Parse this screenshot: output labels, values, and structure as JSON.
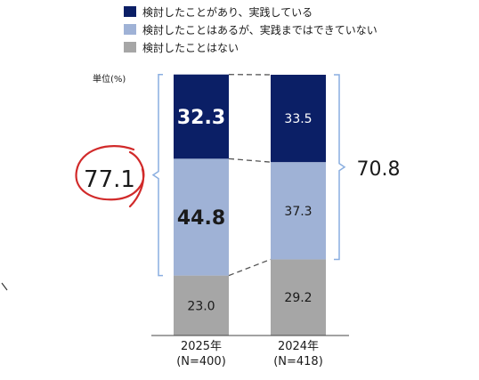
{
  "chart_data": {
    "type": "bar",
    "stacked": true,
    "unit_label": "単位(%)",
    "categories": [
      "2025年",
      "2024年"
    ],
    "category_sublabels": [
      "(N=400)",
      "(N=418)"
    ],
    "series": [
      {
        "name": "検討したことはない",
        "values": [
          23.0,
          29.2
        ],
        "labels": [
          "23.0",
          "29.2"
        ],
        "color": "#a6a6a6",
        "label_color": "#1a1a1a"
      },
      {
        "name": "検討したことはあるが、実践まではできていない",
        "values": [
          44.8,
          37.3
        ],
        "labels": [
          "44.8",
          "37.3"
        ],
        "color": "#9fb2d6",
        "label_color": "#1a1a1a"
      },
      {
        "name": "検討したことがあり、実践している",
        "values": [
          32.3,
          33.5
        ],
        "labels": [
          "32.3",
          "33.5"
        ],
        "color": "#0b1f66",
        "label_color": "#ffffff"
      }
    ],
    "legend_order": [
      2,
      1,
      0
    ],
    "legend_position": "top",
    "ylim": [
      0,
      100
    ],
    "annotations": {
      "left_total": "77.1",
      "right_total": "70.8"
    },
    "colors": {
      "connector": "#555555",
      "bracket": "#8aaee0",
      "circle": "#d12a2a",
      "axis": "#444444",
      "text": "#1a1a1a"
    }
  }
}
